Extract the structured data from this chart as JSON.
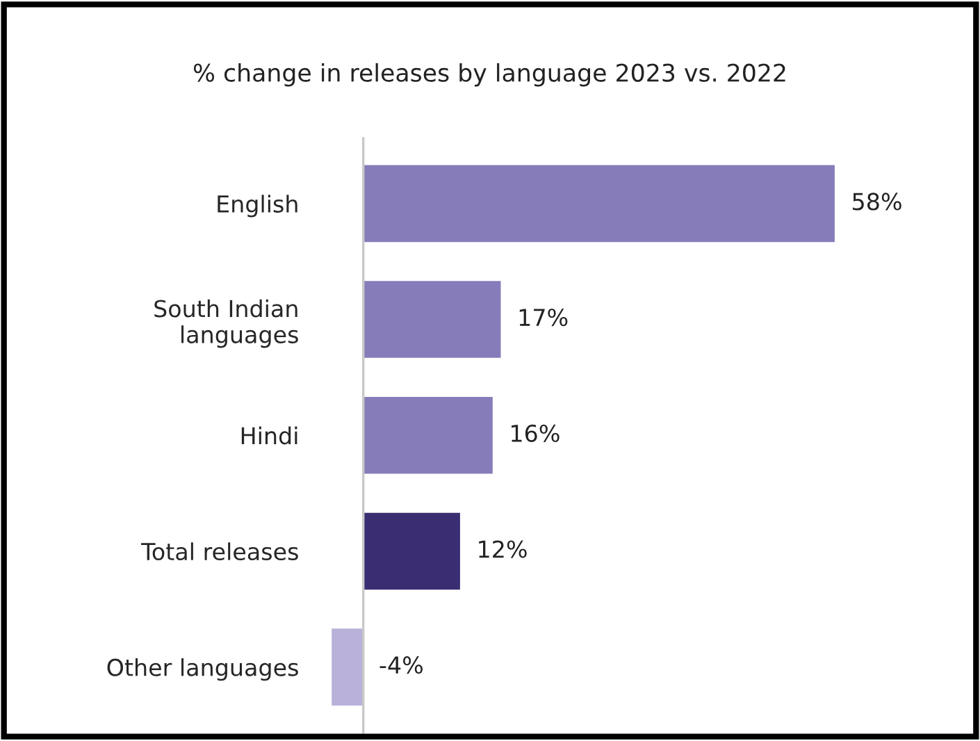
{
  "chart_data": {
    "type": "bar",
    "orientation": "horizontal",
    "title": "% change in releases by language 2023 vs. 2022",
    "categories": [
      "English",
      "South Indian\nlanguages",
      "Hindi",
      "Total releases",
      "Other languages"
    ],
    "values": [
      58,
      17,
      16,
      12,
      -4
    ],
    "colors": [
      "#877cba",
      "#877cba",
      "#877cba",
      "#3b2d72",
      "#b9b1da"
    ],
    "value_labels": [
      "58%",
      "17%",
      "16%",
      "12%",
      "-4%"
    ],
    "grid": false,
    "legend": false
  }
}
